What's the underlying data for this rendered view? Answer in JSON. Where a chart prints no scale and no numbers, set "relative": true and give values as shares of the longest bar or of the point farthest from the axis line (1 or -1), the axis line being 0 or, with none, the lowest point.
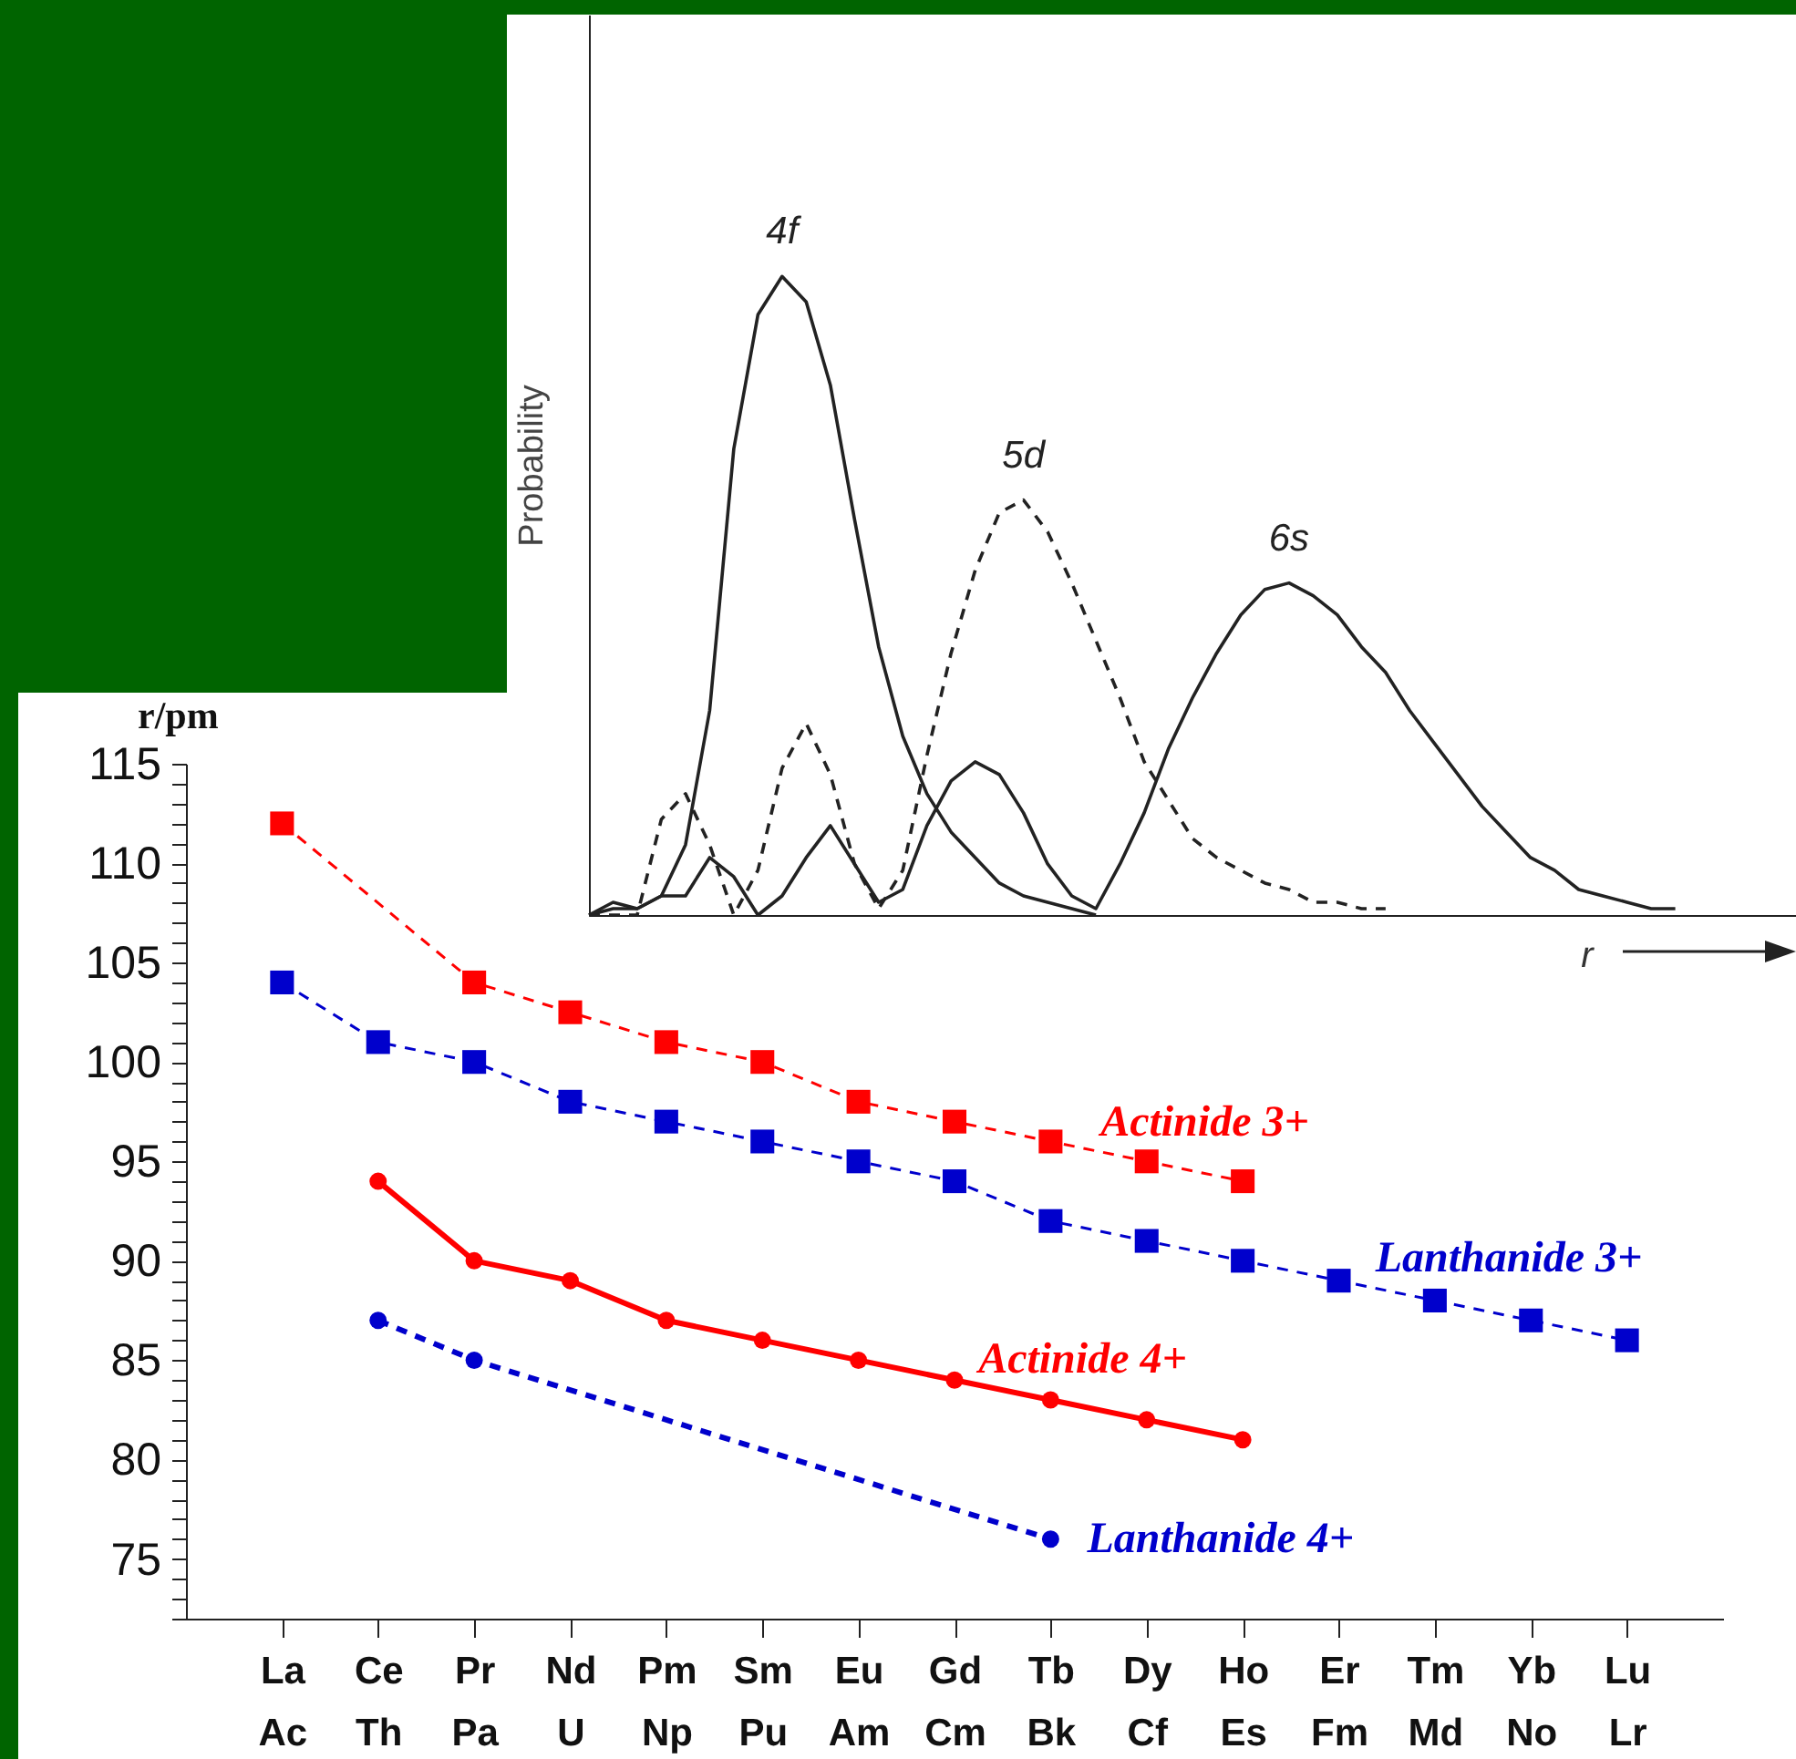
{
  "chart_data": [
    {
      "type": "line",
      "relative": true,
      "xlabel": "r",
      "ylabel": "Probability",
      "grid": false,
      "categories": [
        null,
        null,
        null,
        null,
        null,
        null,
        null,
        null,
        null,
        null,
        null,
        null,
        null,
        null,
        null,
        null,
        null,
        null,
        null,
        null,
        null,
        null,
        null,
        null,
        null,
        null,
        null,
        null,
        null,
        null,
        null,
        null,
        null,
        null,
        null,
        null,
        null,
        null,
        null,
        null,
        null,
        null,
        null,
        null,
        null,
        null,
        null,
        null,
        null,
        null,
        null
      ],
      "series": [
        {
          "name": "4f",
          "color": "#222222",
          "line_style": "solid",
          "values": [
            0,
            0.01,
            0.01,
            0.03,
            0.11,
            0.32,
            0.73,
            0.94,
            1,
            0.96,
            0.83,
            0.62,
            0.42,
            0.28,
            0.19,
            0.13,
            0.09,
            0.05,
            0.03,
            0.02,
            0.01,
            0,
            null,
            null,
            null,
            null,
            null,
            null,
            null,
            null,
            null,
            null,
            null,
            null,
            null,
            null,
            null,
            null,
            null,
            null,
            null,
            null,
            null,
            null,
            null,
            null,
            null,
            null,
            null,
            null,
            null
          ]
        },
        {
          "name": "5d",
          "color": "#222222",
          "line_style": "dashed",
          "values": [
            0,
            0,
            0,
            0.15,
            0.19,
            0.11,
            0,
            0.07,
            0.23,
            0.3,
            0.22,
            0.08,
            0.01,
            0.07,
            0.25,
            0.41,
            0.54,
            0.63,
            0.65,
            0.6,
            0.52,
            0.43,
            0.34,
            0.24,
            0.18,
            0.12,
            0.09,
            0.07,
            0.05,
            0.04,
            0.02,
            0.02,
            0.01,
            0.01,
            null,
            null,
            null,
            null,
            null,
            null,
            null,
            null,
            null,
            null,
            null,
            null,
            null,
            null,
            null,
            null,
            null
          ]
        },
        {
          "name": "6s",
          "color": "#222222",
          "line_style": "solid",
          "values": [
            0,
            0.02,
            0.01,
            0.03,
            0.03,
            0.09,
            0.06,
            0,
            0.03,
            0.09,
            0.14,
            0.08,
            0.02,
            0.04,
            0.14,
            0.21,
            0.24,
            0.22,
            0.16,
            0.08,
            0.03,
            0.01,
            0.08,
            0.16,
            0.26,
            0.34,
            0.41,
            0.47,
            0.51,
            0.52,
            0.5,
            0.47,
            0.42,
            0.38,
            0.32,
            0.27,
            0.22,
            0.17,
            0.13,
            0.09,
            0.07,
            0.04,
            0.03,
            0.02,
            0.01,
            0.01,
            null,
            null,
            null,
            null,
            null
          ]
        }
      ]
    },
    {
      "type": "line",
      "ylabel": "r/pm",
      "grid": false,
      "categories": [
        "La\nAc",
        "Ce\nTh",
        "Pr\nPa",
        "Nd\nU",
        "Pm\nNp",
        "Sm\nPu",
        "Eu\nAm",
        "Gd\nCm",
        "Tb\nBk",
        "Dy\nCf",
        "Ho\nEs",
        "Er\nFm",
        "Tm\nMd",
        "Yb\nNo",
        "Lu\nLr"
      ],
      "ylim": [
        72,
        115
      ],
      "yticks": [
        {
          "value": 72,
          "label": null
        },
        {
          "value": 73,
          "label": null
        },
        {
          "value": 74,
          "label": null
        },
        75,
        {
          "value": 76,
          "label": null
        },
        {
          "value": 77,
          "label": null
        },
        {
          "value": 78,
          "label": null
        },
        {
          "value": 79,
          "label": null
        },
        80,
        {
          "value": 81,
          "label": null
        },
        {
          "value": 82,
          "label": null
        },
        {
          "value": 83,
          "label": null
        },
        {
          "value": 84,
          "label": null
        },
        85,
        {
          "value": 86,
          "label": null
        },
        {
          "value": 87,
          "label": null
        },
        {
          "value": 88,
          "label": null
        },
        {
          "value": 89,
          "label": null
        },
        90,
        {
          "value": 91,
          "label": null
        },
        {
          "value": 92,
          "label": null
        },
        {
          "value": 93,
          "label": null
        },
        {
          "value": 94,
          "label": null
        },
        95,
        {
          "value": 96,
          "label": null
        },
        {
          "value": 97,
          "label": null
        },
        {
          "value": 98,
          "label": null
        },
        {
          "value": 99,
          "label": null
        },
        100,
        {
          "value": 101,
          "label": null
        },
        {
          "value": 102,
          "label": null
        },
        {
          "value": 103,
          "label": null
        },
        {
          "value": 104,
          "label": null
        },
        105,
        {
          "value": 106,
          "label": null
        },
        {
          "value": 107,
          "label": null
        },
        {
          "value": 108,
          "label": null
        },
        {
          "value": 109,
          "label": null
        },
        110,
        {
          "value": 111,
          "label": null
        },
        {
          "value": 112,
          "label": null
        },
        {
          "value": 113,
          "label": null
        },
        {
          "value": 114,
          "label": null
        },
        115
      ],
      "series": [
        {
          "name": "Actinide  3+",
          "color": "#ff0000",
          "marker": "square",
          "line_style": "dashed",
          "values": [
            112,
            null,
            104,
            102.5,
            101,
            100,
            98,
            97,
            96,
            95,
            94,
            null,
            null,
            null,
            null
          ]
        },
        {
          "name": "Lanthanide  3+",
          "color": "#0000cc",
          "marker": "square",
          "line_style": "dashed",
          "values": [
            104,
            101,
            100,
            98,
            97,
            96,
            95,
            94,
            92,
            91,
            90,
            89,
            88,
            87,
            86
          ]
        },
        {
          "name": "Actinide  4+",
          "color": "#ff0000",
          "marker": "circle",
          "line_style": "solid",
          "values": [
            null,
            94,
            90,
            89,
            87,
            86,
            85,
            84,
            83,
            82,
            81,
            null,
            null,
            null,
            null
          ]
        },
        {
          "name": "Lanthanide  4+",
          "color": "#0000cc",
          "marker": "circle",
          "line_style": "dashed",
          "values": [
            null,
            87,
            85,
            null,
            null,
            null,
            null,
            null,
            76,
            null,
            null,
            null,
            null,
            null,
            null
          ]
        }
      ]
    }
  ]
}
